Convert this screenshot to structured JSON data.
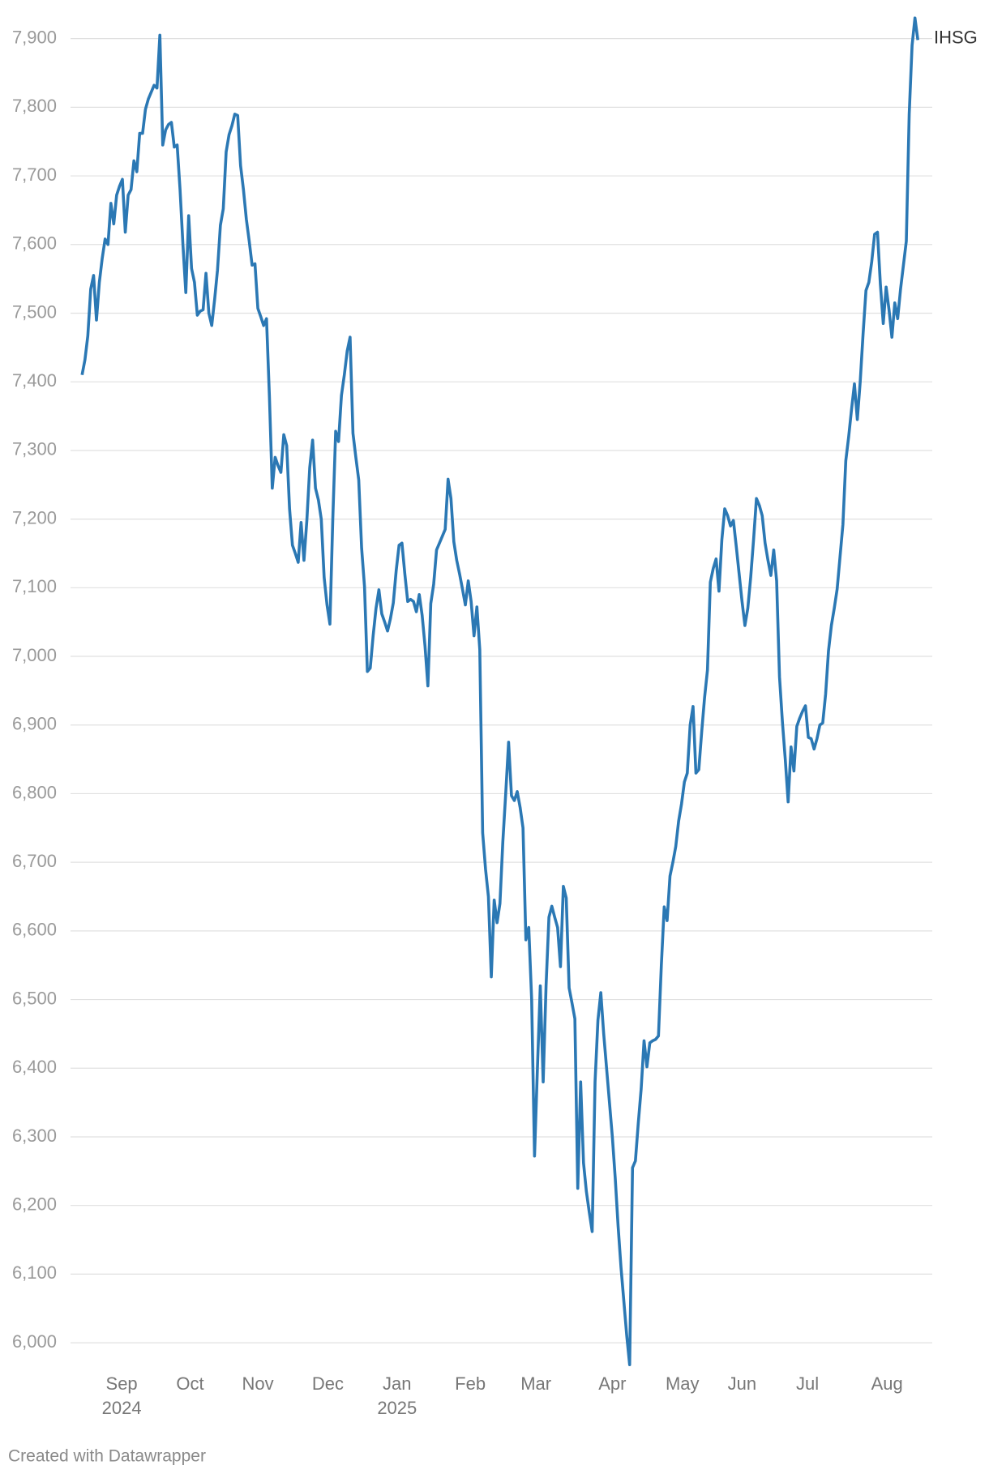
{
  "chart_data": {
    "type": "line",
    "series": [
      {
        "name": "IHSG",
        "color": "#2b78b4",
        "values": [
          7410,
          7432,
          7467,
          7535,
          7555,
          7490,
          7545,
          7580,
          7608,
          7600,
          7660,
          7630,
          7672,
          7685,
          7695,
          7618,
          7672,
          7680,
          7722,
          7706,
          7762,
          7762,
          7797,
          7812,
          7822,
          7832,
          7828,
          7905,
          7745,
          7767,
          7775,
          7778,
          7742,
          7745,
          7680,
          7600,
          7530,
          7642,
          7565,
          7545,
          7497,
          7503,
          7505,
          7558,
          7500,
          7482,
          7520,
          7563,
          7628,
          7652,
          7735,
          7760,
          7773,
          7790,
          7788,
          7715,
          7680,
          7637,
          7605,
          7570,
          7572,
          7507,
          7495,
          7482,
          7492,
          7380,
          7245,
          7290,
          7278,
          7268,
          7323,
          7307,
          7215,
          7162,
          7150,
          7137,
          7195,
          7140,
          7198,
          7275,
          7315,
          7245,
          7228,
          7200,
          7115,
          7075,
          7047,
          7200,
          7328,
          7313,
          7380,
          7410,
          7445,
          7465,
          7325,
          7290,
          7257,
          7158,
          7102,
          6978,
          6983,
          7030,
          7070,
          7097,
          7062,
          7050,
          7037,
          7055,
          7078,
          7125,
          7162,
          7165,
          7120,
          7080,
          7083,
          7080,
          7065,
          7090,
          7060,
          7015,
          6957,
          7077,
          7105,
          7155,
          7165,
          7175,
          7185,
          7258,
          7230,
          7167,
          7140,
          7120,
          7098,
          7075,
          7110,
          7080,
          7030,
          7072,
          7010,
          6743,
          6690,
          6650,
          6533,
          6645,
          6612,
          6640,
          6730,
          6800,
          6875,
          6797,
          6790,
          6803,
          6780,
          6750,
          6587,
          6605,
          6500,
          6272,
          6400,
          6520,
          6380,
          6520,
          6620,
          6636,
          6620,
          6605,
          6548,
          6665,
          6648,
          6517,
          6495,
          6472,
          6225,
          6380,
          6262,
          6220,
          6190,
          6162,
          6380,
          6470,
          6510,
          6450,
          6400,
          6350,
          6300,
          6240,
          6170,
          6110,
          6060,
          6010,
          5968,
          6255,
          6265,
          6320,
          6370,
          6440,
          6402,
          6437,
          6440,
          6442,
          6447,
          6550,
          6635,
          6615,
          6680,
          6700,
          6723,
          6760,
          6785,
          6817,
          6830,
          6900,
          6927,
          6830,
          6835,
          6890,
          6940,
          6980,
          7108,
          7128,
          7142,
          7095,
          7170,
          7215,
          7205,
          7190,
          7198,
          7160,
          7120,
          7080,
          7045,
          7070,
          7115,
          7170,
          7230,
          7220,
          7205,
          7165,
          7140,
          7118,
          7155,
          7110,
          6970,
          6905,
          6850,
          6788,
          6868,
          6833,
          6898,
          6910,
          6920,
          6928,
          6882,
          6880,
          6865,
          6880,
          6900,
          6903,
          6945,
          7008,
          7045,
          7070,
          7098,
          7145,
          7192,
          7285,
          7320,
          7360,
          7397,
          7345,
          7400,
          7470,
          7533,
          7545,
          7575,
          7615,
          7618,
          7542,
          7485,
          7538,
          7505,
          7465,
          7515,
          7492,
          7535,
          7570,
          7605,
          7790,
          7890,
          7930,
          7898
        ]
      }
    ],
    "xlim": [
      -4,
      295
    ],
    "xticks": [
      {
        "value": 13.75,
        "label": "Sep 2024"
      },
      {
        "value": 37.5,
        "label": "Oct"
      },
      {
        "value": 61,
        "label": "Nov"
      },
      {
        "value": 85.3,
        "label": "Dec"
      },
      {
        "value": 109.3,
        "label": "Jan 2025"
      },
      {
        "value": 134.7,
        "label": "Feb"
      },
      {
        "value": 157.5,
        "label": "Mar"
      },
      {
        "value": 184,
        "label": "Apr"
      },
      {
        "value": 208.3,
        "label": "May"
      },
      {
        "value": 229,
        "label": "Jun"
      },
      {
        "value": 251.7,
        "label": "Jul"
      },
      {
        "value": 279.3,
        "label": "Aug"
      }
    ],
    "ylim": [
      5960,
      7935
    ],
    "yticks": [
      {
        "value": 6000,
        "label": "6,000"
      },
      {
        "value": 6100,
        "label": "6,100"
      },
      {
        "value": 6200,
        "label": "6,200"
      },
      {
        "value": 6300,
        "label": "6,300"
      },
      {
        "value": 6400,
        "label": "6,400"
      },
      {
        "value": 6500,
        "label": "6,500"
      },
      {
        "value": 6600,
        "label": "6,600"
      },
      {
        "value": 6700,
        "label": "6,700"
      },
      {
        "value": 6800,
        "label": "6,800"
      },
      {
        "value": 6900,
        "label": "6,900"
      },
      {
        "value": 7000,
        "label": "7,000"
      },
      {
        "value": 7100,
        "label": "7,100"
      },
      {
        "value": 7200,
        "label": "7,200"
      },
      {
        "value": 7300,
        "label": "7,300"
      },
      {
        "value": 7400,
        "label": "7,400"
      },
      {
        "value": 7500,
        "label": "7,500"
      },
      {
        "value": 7600,
        "label": "7,600"
      },
      {
        "value": 7700,
        "label": "7,700"
      },
      {
        "value": 7800,
        "label": "7,800"
      },
      {
        "value": 7900,
        "label": "7,900"
      }
    ],
    "grid": true,
    "footer": "Created with Datawrapper"
  }
}
